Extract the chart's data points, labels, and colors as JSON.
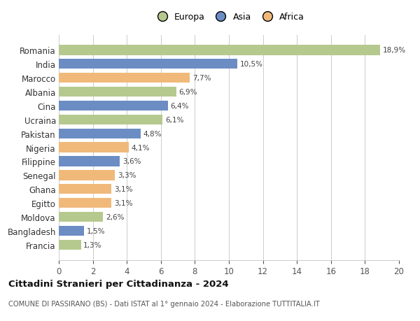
{
  "countries": [
    "Romania",
    "India",
    "Marocco",
    "Albania",
    "Cina",
    "Ucraina",
    "Pakistan",
    "Nigeria",
    "Filippine",
    "Senegal",
    "Ghana",
    "Egitto",
    "Moldova",
    "Bangladesh",
    "Francia"
  ],
  "values": [
    18.9,
    10.5,
    7.7,
    6.9,
    6.4,
    6.1,
    4.8,
    4.1,
    3.6,
    3.3,
    3.1,
    3.1,
    2.6,
    1.5,
    1.3
  ],
  "labels": [
    "18,9%",
    "10,5%",
    "7,7%",
    "6,9%",
    "6,4%",
    "6,1%",
    "4,8%",
    "4,1%",
    "3,6%",
    "3,3%",
    "3,1%",
    "3,1%",
    "2,6%",
    "1,5%",
    "1,3%"
  ],
  "continent": [
    "Europa",
    "Asia",
    "Africa",
    "Europa",
    "Asia",
    "Europa",
    "Asia",
    "Africa",
    "Asia",
    "Africa",
    "Africa",
    "Africa",
    "Europa",
    "Asia",
    "Europa"
  ],
  "colors": {
    "Europa": "#b5c98e",
    "Asia": "#6b8dc4",
    "Africa": "#f0b97a"
  },
  "legend_order": [
    "Europa",
    "Asia",
    "Africa"
  ],
  "xlim": [
    0,
    20
  ],
  "xticks": [
    0,
    2,
    4,
    6,
    8,
    10,
    12,
    14,
    16,
    18,
    20
  ],
  "title": "Cittadini Stranieri per Cittadinanza - 2024",
  "subtitle": "COMUNE DI PASSIRANO (BS) - Dati ISTAT al 1° gennaio 2024 - Elaborazione TUTTITALIA.IT",
  "background_color": "#ffffff",
  "grid_color": "#cccccc",
  "bar_height": 0.72
}
